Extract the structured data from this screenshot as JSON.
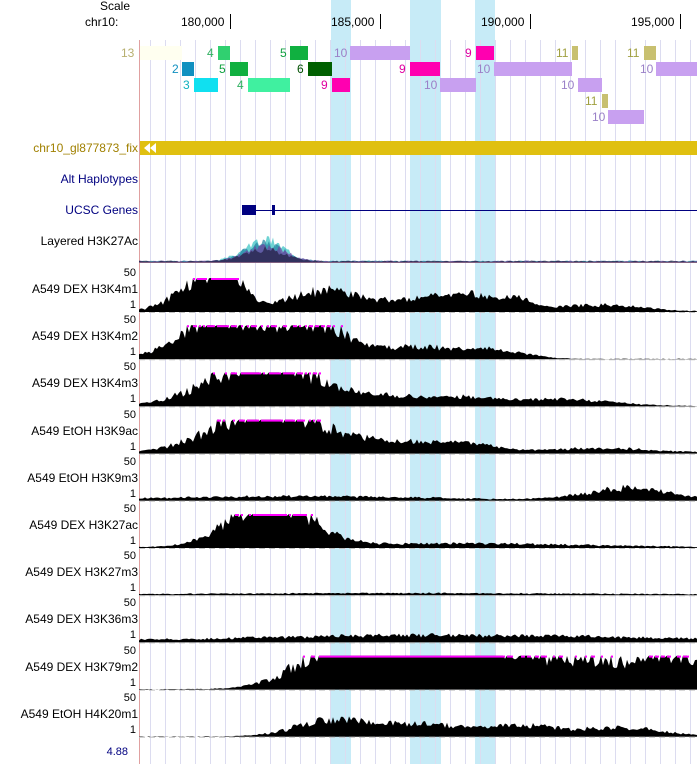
{
  "header": {
    "scale_label": "Scale",
    "chrom_label": "chr10:"
  },
  "ruler_ticks": [
    "180,000",
    "185,000",
    "190,000",
    "195,000"
  ],
  "hic_numbers": [
    "13",
    "4",
    "5",
    "10",
    "9",
    "11",
    "11",
    "2",
    "5",
    "6",
    "9",
    "10",
    "10",
    "3",
    "4",
    "9",
    "10",
    "10",
    "11",
    "10"
  ],
  "alt_block_label": "chr10_gl877873_fix",
  "tracks": {
    "alt_haplotypes": "Alt Haplotypes",
    "ucsc_genes": "UCSC Genes",
    "layered": "Layered H3K27Ac"
  },
  "signal_tracks": [
    {
      "label": "A549 DEX H3K4m1",
      "max": "50",
      "min": "1"
    },
    {
      "label": "A549 DEX H3K4m2",
      "max": "50",
      "min": "1"
    },
    {
      "label": "A549 DEX H3K4m3",
      "max": "50",
      "min": "1"
    },
    {
      "label": "A549 EtOH H3K9ac",
      "max": "50",
      "min": "1"
    },
    {
      "label": "A549 EtOH H3K9m3",
      "max": "50",
      "min": "1"
    },
    {
      "label": "A549 DEX H3K27ac",
      "max": "50",
      "min": "1"
    },
    {
      "label": "A549 DEX H3K27m3",
      "max": "50",
      "min": "1"
    },
    {
      "label": "A549 DEX H3K36m3",
      "max": "50",
      "min": "1"
    },
    {
      "label": "A549 DEX H3K79m2",
      "max": "50",
      "min": "1"
    },
    {
      "label": "A549 EtOH H4K20m1",
      "max": "50",
      "min": "1"
    }
  ],
  "footer_value": "4.88",
  "colors": {
    "alt_block": "#e0c010",
    "highlight": "#c7ebf7",
    "label_blue": "#000080",
    "alt_label": "#a08000",
    "clipped": "#ff00ff"
  }
}
